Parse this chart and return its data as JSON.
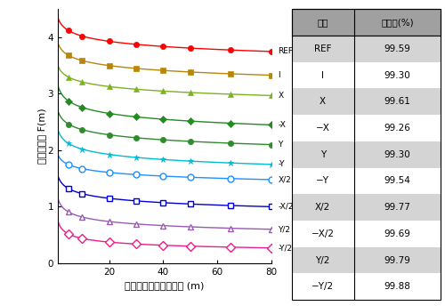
{
  "series": [
    {
      "label": "REF",
      "color": "#ff0000",
      "marker": "o",
      "filled": true,
      "y0": 4.35,
      "y80": 3.75
    },
    {
      "label": "I",
      "color": "#b8860b",
      "marker": "s",
      "filled": true,
      "y0": 3.9,
      "y80": 3.33
    },
    {
      "label": "X",
      "color": "#7db220",
      "marker": "^",
      "filled": true,
      "y0": 3.5,
      "y80": 2.97
    },
    {
      "label": "-X",
      "color": "#228b22",
      "marker": "D",
      "filled": true,
      "y0": 3.15,
      "y80": 2.45
    },
    {
      "label": "Y",
      "color": "#2e8b2e",
      "marker": "o",
      "filled": true,
      "y0": 2.7,
      "y80": 2.1
    },
    {
      "label": "-Y",
      "color": "#00bcd4",
      "marker": "*",
      "filled": true,
      "y0": 2.37,
      "y80": 1.75
    },
    {
      "label": "X/2",
      "color": "#1e90ff",
      "marker": "o",
      "filled": false,
      "y0": 1.92,
      "y80": 1.48
    },
    {
      "label": "-X/2",
      "color": "#0000cd",
      "marker": "s",
      "filled": false,
      "y0": 1.55,
      "y80": 1.0
    },
    {
      "label": "Y/2",
      "color": "#9b59b6",
      "marker": "^",
      "filled": false,
      "y0": 1.15,
      "y80": 0.6
    },
    {
      "label": "-Y/2",
      "color": "#e91e8c",
      "marker": "D",
      "filled": false,
      "y0": 0.75,
      "y80": 0.27
    }
  ],
  "x_marker_positions": [
    5,
    10,
    20,
    30,
    40,
    50,
    65,
    80
  ],
  "xlabel_ja": "クリフォード操作回数 (m)",
  "ylabel_ja": "操作忠実度 F(m)",
  "xlim": [
    1,
    80
  ],
  "ylim": [
    0,
    4.5
  ],
  "yticks": [
    0,
    1,
    2,
    3,
    4
  ],
  "xticks": [
    20,
    40,
    60,
    80
  ],
  "table_header_bg": "#a0a0a0",
  "table_odd_bg": "#d4d4d4",
  "table_even_bg": "#ffffff",
  "table_operations": [
    "REF",
    "I",
    "X",
    "−X",
    "Y",
    "−Y",
    "X/2",
    "−X/2",
    "Y/2",
    "−Y/2"
  ],
  "table_fidelities": [
    "99.59",
    "99.30",
    "99.61",
    "99.26",
    "99.30",
    "99.54",
    "99.77",
    "99.69",
    "99.79",
    "99.88"
  ],
  "table_col1_ja": "操作",
  "table_col2_ja": "忠実度(%)"
}
